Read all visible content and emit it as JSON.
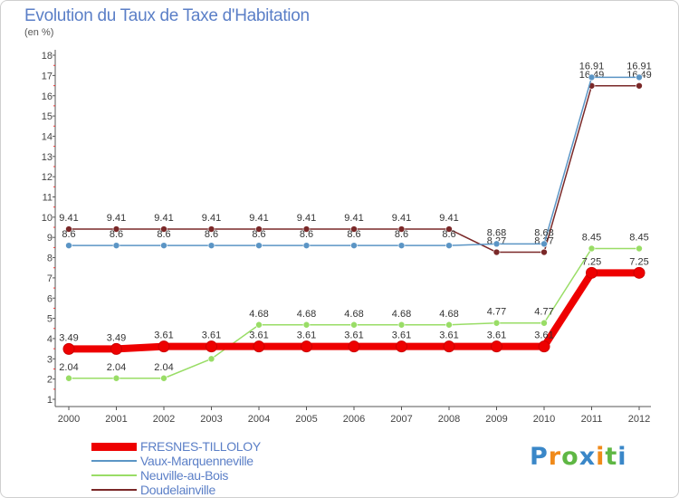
{
  "header": {
    "title": "Evolution du Taux de Taxe d'Habitation",
    "unit": "(en %)"
  },
  "chart_data": {
    "type": "line",
    "title": "Evolution du Taux de Taxe d'Habitation",
    "ylabel": "(en %)",
    "xlabel": "",
    "ylim": [
      1,
      18
    ],
    "yticks": [
      1,
      2,
      3,
      4,
      5,
      6,
      7,
      8,
      9,
      10,
      11,
      12,
      13,
      14,
      15,
      16,
      17,
      18
    ],
    "grid": false,
    "x": [
      "2000",
      "2001",
      "2002",
      "2003",
      "2004",
      "2005",
      "2006",
      "2007",
      "2008",
      "2009",
      "2010",
      "2011",
      "2012"
    ],
    "series": [
      {
        "name": "Doudelainville",
        "color": "#7a2828",
        "values": [
          9.41,
          9.41,
          9.41,
          9.41,
          9.41,
          9.41,
          9.41,
          9.41,
          9.41,
          8.27,
          8.27,
          16.49,
          16.49
        ],
        "labels": [
          "9.41",
          "9.41",
          "9.41",
          "9.41",
          "9.41",
          "9.41",
          "9.41",
          "9.41",
          "9.41",
          "8.27",
          "8.27",
          "16.49",
          "16.49"
        ]
      },
      {
        "name": "Vaux-Marquenneville",
        "color": "#5b95c5",
        "values": [
          8.6,
          8.6,
          8.6,
          8.6,
          8.6,
          8.6,
          8.6,
          8.6,
          8.6,
          8.68,
          8.68,
          16.91,
          16.91
        ],
        "labels": [
          "8.6",
          "8.6",
          "8.6",
          "8.6",
          "8.6",
          "8.6",
          "8.6",
          "8.6",
          "8.6",
          "8.68",
          "8.68",
          "16.91",
          "16.91"
        ]
      },
      {
        "name": "Neuville-au-Bois",
        "color": "#99dd66",
        "values": [
          2.04,
          2.04,
          2.04,
          3.0,
          4.68,
          4.68,
          4.68,
          4.68,
          4.68,
          4.77,
          4.77,
          8.45,
          8.45
        ],
        "labels": [
          "2.04",
          "2.04",
          "2.04",
          "",
          "4.68",
          "4.68",
          "4.68",
          "4.68",
          "4.68",
          "4.77",
          "4.77",
          "8.45",
          "8.45"
        ]
      },
      {
        "name": "FRESNES-TILLOLOY",
        "color": "#ee0000",
        "values": [
          3.49,
          3.49,
          3.61,
          3.61,
          3.61,
          3.61,
          3.61,
          3.61,
          3.61,
          3.61,
          3.61,
          7.25,
          7.25
        ],
        "labels": [
          "3.49",
          "3.49",
          "3.61",
          "3.61",
          "3.61",
          "3.61",
          "3.61",
          "3.61",
          "3.61",
          "3.61",
          "3.61",
          "7.25",
          "7.25"
        ]
      }
    ],
    "legend": {
      "position": "bottom-left",
      "entries": [
        "FRESNES-TILLOLOY",
        "Vaux-Marquenneville",
        "Neuville-au-Bois",
        "Doudelainville"
      ]
    }
  },
  "legend": {
    "items": [
      {
        "label": "FRESNES-TILLOLOY",
        "color": "#ee0000"
      },
      {
        "label": "Vaux-Marquenneville",
        "color": "#5b95c5"
      },
      {
        "label": "Neuville-au-Bois",
        "color": "#99dd66"
      },
      {
        "label": "Doudelainville",
        "color": "#7a2828"
      }
    ]
  },
  "logo": {
    "letters": [
      "P",
      "r",
      "o",
      "x",
      "i",
      "t",
      "i"
    ],
    "colors": [
      "#3a87c8",
      "#f08a1a",
      "#5fb744",
      "#3a87c8",
      "#f08a1a",
      "#5fb744",
      "#3a87c8"
    ]
  }
}
